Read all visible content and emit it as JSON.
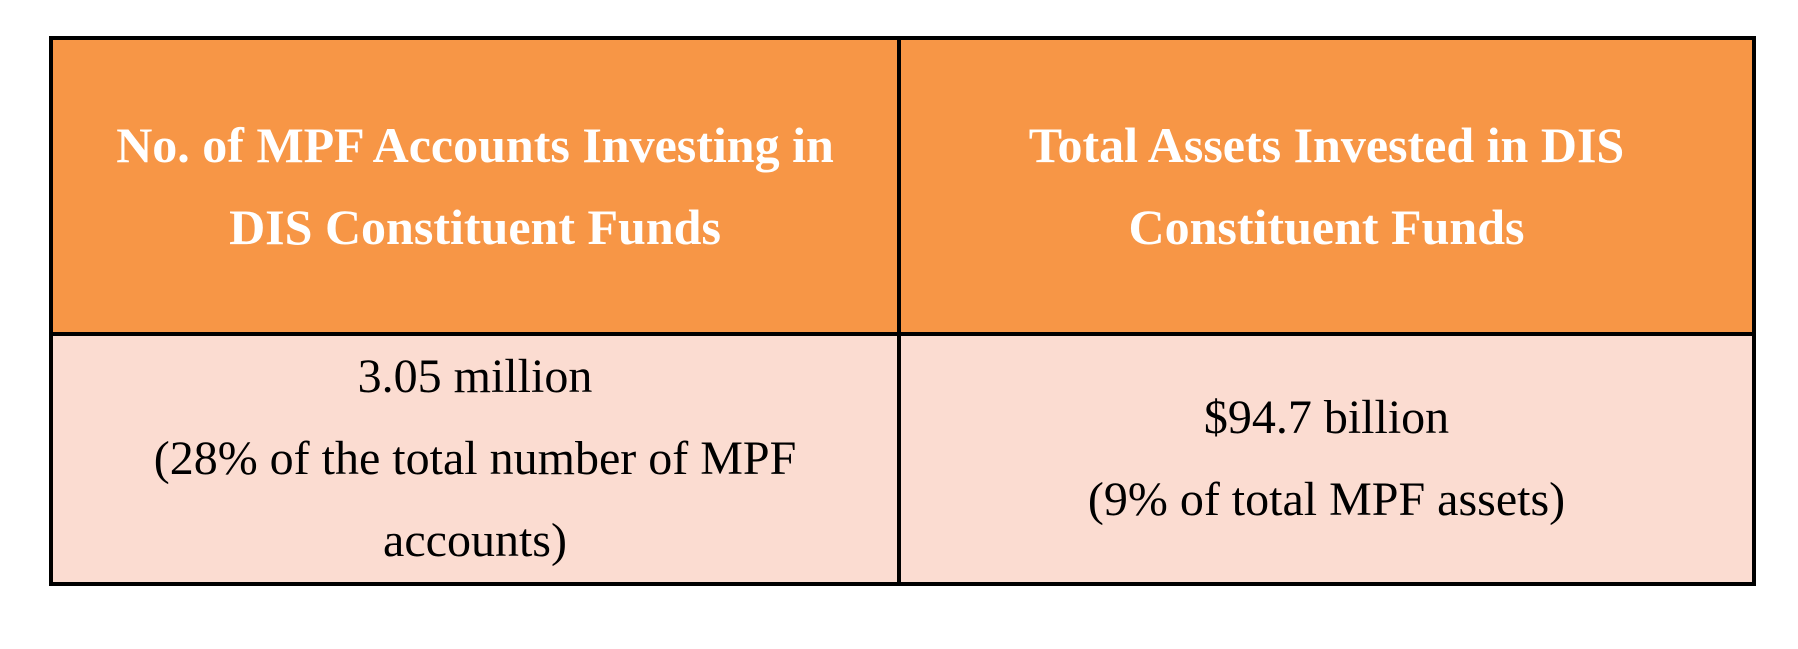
{
  "table": {
    "headers": [
      {
        "label": "No. of MPF Accounts Investing in DIS Constituent Funds"
      },
      {
        "label": "Total Assets Invested in DIS Constituent Funds"
      }
    ],
    "rows": [
      {
        "cells": [
          {
            "value": "3.05 million",
            "note": "(28% of the total number of MPF accounts)"
          },
          {
            "value": "$94.7 billion",
            "note": "(9% of total MPF assets)"
          }
        ]
      }
    ]
  },
  "colors": {
    "header_background": "#f79646",
    "header_text": "#ffffff",
    "body_background": "#fbdcd1",
    "body_text": "#000000",
    "border": "#000000"
  }
}
